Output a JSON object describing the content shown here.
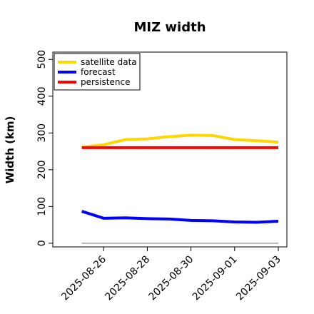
{
  "chart_data": {
    "type": "line",
    "title": "MIZ width",
    "xlabel": "",
    "ylabel": "Width (km)",
    "x": [
      "2025-08-25",
      "2025-08-26",
      "2025-08-27",
      "2025-08-28",
      "2025-08-29",
      "2025-08-30",
      "2025-08-31",
      "2025-09-01",
      "2025-09-02",
      "2025-09-03"
    ],
    "xticks": [
      "2025-08-26",
      "2025-08-28",
      "2025-08-30",
      "2025-09-01",
      "2025-09-03"
    ],
    "xtick_highlight": "2025-08-26",
    "xlim": [
      "2025-08-24",
      "2025-09-03"
    ],
    "ylim": [
      -10,
      520
    ],
    "yticks": [
      0,
      100,
      200,
      300,
      400,
      500
    ],
    "grid": false,
    "legend_position": "top-left",
    "series": [
      {
        "name": "satellite data",
        "color": "#FFD700",
        "values": [
          261,
          268,
          282,
          284,
          290,
          294,
          293,
          282,
          279,
          275
        ]
      },
      {
        "name": "forecast",
        "color": "#0000FF",
        "values": [
          87,
          68,
          69,
          67,
          66,
          62,
          61,
          58,
          57,
          60
        ]
      },
      {
        "name": "persistence",
        "color": "#FF0000",
        "values": [
          260,
          260,
          260,
          260,
          260,
          260,
          260,
          260,
          260,
          260
        ]
      }
    ],
    "reference_line": {
      "color": "#888888",
      "values": [
        0,
        0,
        0,
        0,
        0,
        0,
        0,
        0,
        0,
        0
      ]
    }
  }
}
